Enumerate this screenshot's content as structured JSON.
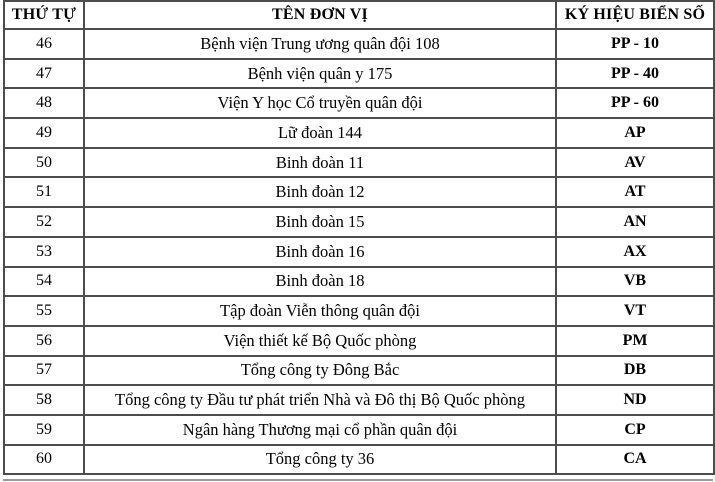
{
  "table": {
    "columns": [
      {
        "key": "no",
        "label": "THỨ TỰ"
      },
      {
        "key": "unit",
        "label": "TÊN ĐƠN VỊ"
      },
      {
        "key": "code",
        "label": "KÝ HIỆU BIỂN SỐ"
      }
    ],
    "rows": [
      {
        "no": "46",
        "unit": "Bệnh viện Trung ương quân đội 108",
        "code": "PP - 10"
      },
      {
        "no": "47",
        "unit": "Bệnh viện quân y 175",
        "code": "PP - 40"
      },
      {
        "no": "48",
        "unit": "Viện Y học Cổ truyền quân đội",
        "code": "PP - 60"
      },
      {
        "no": "49",
        "unit": "Lữ đoàn 144",
        "code": "AP"
      },
      {
        "no": "50",
        "unit": "Binh đoàn 11",
        "code": "AV"
      },
      {
        "no": "51",
        "unit": "Binh đoàn 12",
        "code": "AT"
      },
      {
        "no": "52",
        "unit": "Binh đoàn 15",
        "code": "AN"
      },
      {
        "no": "53",
        "unit": "Binh đoàn 16",
        "code": "AX"
      },
      {
        "no": "54",
        "unit": "Binh đoàn 18",
        "code": "VB"
      },
      {
        "no": "55",
        "unit": "Tập đoàn Viễn thông quân đội",
        "code": "VT"
      },
      {
        "no": "56",
        "unit": "Viện thiết kế Bộ Quốc phòng",
        "code": "PM"
      },
      {
        "no": "57",
        "unit": "Tổng công ty Đông Bắc",
        "code": "DB"
      },
      {
        "no": "58",
        "unit": "Tổng công ty Đầu tư phát triển Nhà và Đô thị Bộ Quốc phòng",
        "code": "ND"
      },
      {
        "no": "59",
        "unit": "Ngân hàng Thương mại cổ phần quân đội",
        "code": "CP"
      },
      {
        "no": "60",
        "unit": "Tổng công ty 36",
        "code": "CA"
      }
    ]
  }
}
